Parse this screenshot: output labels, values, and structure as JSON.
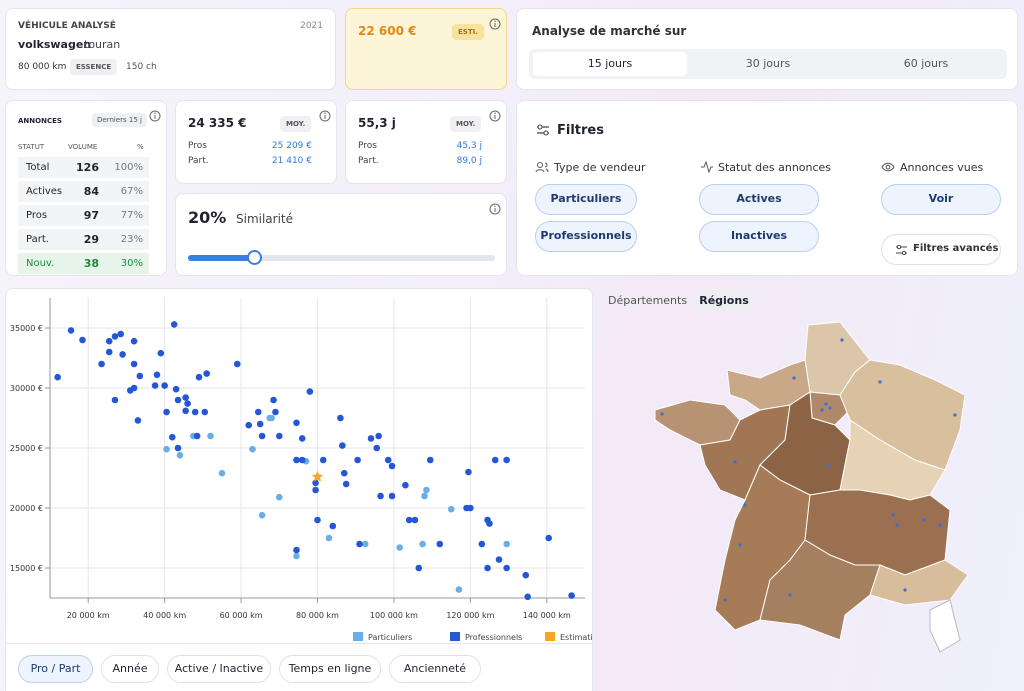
{
  "vehicle": {
    "label": "VÉHICULE ANALYSÉ",
    "year": "2021",
    "make": "volkswagen",
    "model": "touran",
    "km": "80 000 km",
    "fuel": "ESSENCE",
    "power": "150 ch"
  },
  "estimate": {
    "price": "22 600 €",
    "badge": "ESTI."
  },
  "market": {
    "title": "Analyse de marché sur",
    "tabs": [
      "15 jours",
      "30 jours",
      "60 jours"
    ]
  },
  "listings": {
    "title": "ANNONCES",
    "badge": "Derniers 15 j",
    "headers": [
      "STATUT",
      "VOLUME",
      "%"
    ],
    "rows": [
      [
        "Total",
        "126",
        "100%"
      ],
      [
        "Actives",
        "84",
        "67%"
      ],
      [
        "Pros",
        "97",
        "77%"
      ],
      [
        "Part.",
        "29",
        "23%"
      ],
      [
        "Nouv.",
        "38",
        "30%"
      ]
    ]
  },
  "price": {
    "value": "24 335 €",
    "badge": "MOY.",
    "rows": [
      [
        "Pros",
        "25 209 €"
      ],
      [
        "Part.",
        "21 410 €"
      ]
    ]
  },
  "duration": {
    "value": "55,3 j",
    "badge": "MOY.",
    "rows": [
      [
        "Pros",
        "45,3 j"
      ],
      [
        "Part.",
        "89,0 j"
      ]
    ]
  },
  "similarity": {
    "value": "20%",
    "label": "Similarité"
  },
  "filters": {
    "title": "Filtres",
    "groups": [
      {
        "label": "Type de vendeur",
        "options": [
          "Particuliers",
          "Professionnels"
        ]
      },
      {
        "label": "Statut des annonces",
        "options": [
          "Actives",
          "Inactives"
        ]
      },
      {
        "label": "Annonces vues",
        "options": [
          "Voir"
        ]
      }
    ],
    "advanced": "Filtres avancés"
  },
  "map_tabs": [
    "Départements",
    "Régions"
  ],
  "bottom_tabs": [
    "Pro / Part",
    "Année",
    "Active / Inactive",
    "Temps en ligne",
    "Ancienneté"
  ],
  "chart_data": {
    "type": "scatter",
    "grid": true,
    "legend": "bottom",
    "xlim": [
      10000,
      150000
    ],
    "xticks": [
      {
        "value": 20000,
        "label": "20 000 km"
      },
      {
        "value": 40000,
        "label": "40 000 km"
      },
      {
        "value": 60000,
        "label": "60 000 km"
      },
      {
        "value": 80000,
        "label": "80 000 km"
      },
      {
        "value": 100000,
        "label": "100 000 km"
      },
      {
        "value": 120000,
        "label": "120 000 km"
      },
      {
        "value": 140000,
        "label": "140 000 km"
      }
    ],
    "ylim": [
      12500,
      37500
    ],
    "yticks": [
      {
        "value": 15000,
        "label": "15000 €"
      },
      {
        "value": 20000,
        "label": "20000 €"
      },
      {
        "value": 25000,
        "label": "25000 €"
      },
      {
        "value": 30000,
        "label": "30000 €"
      },
      {
        "value": 35000,
        "label": "35000 €"
      }
    ],
    "series": [
      {
        "name": "Particuliers",
        "color": "#6aaee8",
        "marker": "circle",
        "x": [
          40500,
          44000,
          47500,
          52000,
          55000,
          63000,
          65500,
          67500,
          68000,
          70000,
          74500,
          77000,
          83000,
          92500,
          101500,
          107500,
          108500,
          108000,
          115000,
          117000,
          129500
        ],
        "values": [
          24900,
          24400,
          26000,
          26000,
          22900,
          24900,
          19400,
          27500,
          27500,
          20900,
          16000,
          23900,
          17500,
          17000,
          16700,
          17000,
          21500,
          21000,
          19900,
          13200,
          17000
        ]
      },
      {
        "name": "Professionnels",
        "color": "#2457d6",
        "marker": "circle",
        "x": [
          12000,
          15500,
          18500,
          23500,
          25500,
          27000,
          28500,
          25500,
          27000,
          29000,
          32000,
          32000,
          31000,
          32000,
          33500,
          33000,
          37500,
          39000,
          38000,
          40000,
          40500,
          42500,
          43000,
          43500,
          42000,
          43500,
          45500,
          46000,
          45500,
          48000,
          49000,
          51000,
          50500,
          48500,
          59000,
          62000,
          64500,
          68500,
          65000,
          65500,
          69000,
          70000,
          74500,
          78000,
          76000,
          74500,
          76000,
          79500,
          79500,
          80000,
          81500,
          74500,
          86000,
          86500,
          87000,
          87500,
          84000,
          90500,
          94000,
          95500,
          96000,
          98500,
          99500,
          96500,
          99500,
          91000,
          103000,
          104000,
          105500,
          109500,
          106500,
          112000,
          119000,
          120000,
          119500,
          123000,
          124500,
          125000,
          124500,
          126500,
          127500,
          129500,
          129500,
          134500,
          140500,
          135000,
          146500
        ],
        "values": [
          30900,
          34800,
          34000,
          32000,
          33900,
          34300,
          34500,
          33000,
          29000,
          32800,
          33900,
          32000,
          29800,
          30000,
          31000,
          27300,
          30200,
          32900,
          31100,
          30200,
          28000,
          35300,
          29900,
          29000,
          25900,
          25000,
          29200,
          28700,
          28100,
          28000,
          30900,
          31200,
          28000,
          26000,
          32000,
          26900,
          28000,
          29000,
          27000,
          26000,
          28000,
          26000,
          27100,
          29700,
          25800,
          24000,
          24000,
          22100,
          21500,
          19000,
          24000,
          16500,
          27500,
          25200,
          22900,
          22000,
          18500,
          24000,
          25800,
          25000,
          26000,
          24000,
          23500,
          21000,
          21000,
          17000,
          21900,
          19000,
          19000,
          24000,
          15000,
          17000,
          20000,
          20000,
          23000,
          17000,
          19000,
          18700,
          15000,
          24000,
          15700,
          24000,
          15000,
          14400,
          17500,
          12600,
          12700
        ]
      },
      {
        "name": "Estimation",
        "color": "#f5a623",
        "marker": "star",
        "x": [
          80000
        ],
        "values": [
          22600
        ]
      }
    ]
  }
}
